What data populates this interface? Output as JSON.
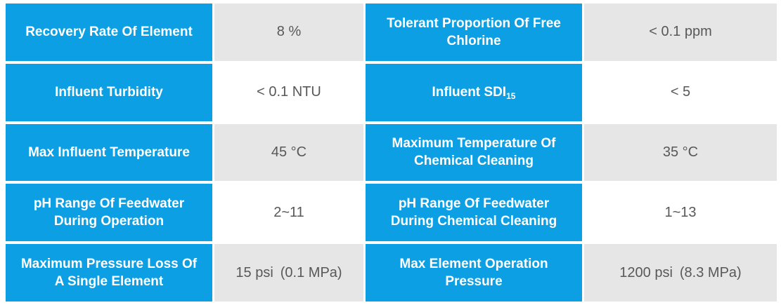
{
  "colors": {
    "accent": "#0C9FE4",
    "zebra": "#E6E6E6",
    "value_text": "#58585A",
    "label_text": "#FFFFFF",
    "bg": "#FFFFFF"
  },
  "table": {
    "rows": [
      {
        "left_label": "Recovery Rate Of Element",
        "left_value": "8 %",
        "right_label": "Tolerant Proportion Of Free\nChlorine",
        "right_value": "< 0.1 ppm"
      },
      {
        "left_label": "Influent Turbidity",
        "left_value": "< 0.1 NTU",
        "right_label": "Influent SDI",
        "right_label_sub": "15",
        "right_value": "< 5"
      },
      {
        "left_label": "Max Influent Temperature",
        "left_value": "45 °C",
        "right_label": "Maximum Temperature Of\nChemical Cleaning",
        "right_value": "35 °C"
      },
      {
        "left_label": "pH Range Of Feedwater\nDuring Operation",
        "left_value": "2~11",
        "right_label": "pH Range Of Feedwater\nDuring Chemical Cleaning",
        "right_value": "1~13"
      },
      {
        "left_label": "Maximum Pressure Loss Of\nA Single Element",
        "left_value": "15 psi (0.1 MPa)",
        "right_label": "Max Element Operation\nPressure",
        "right_value": "1200 psi (8.3 MPa)"
      }
    ]
  }
}
